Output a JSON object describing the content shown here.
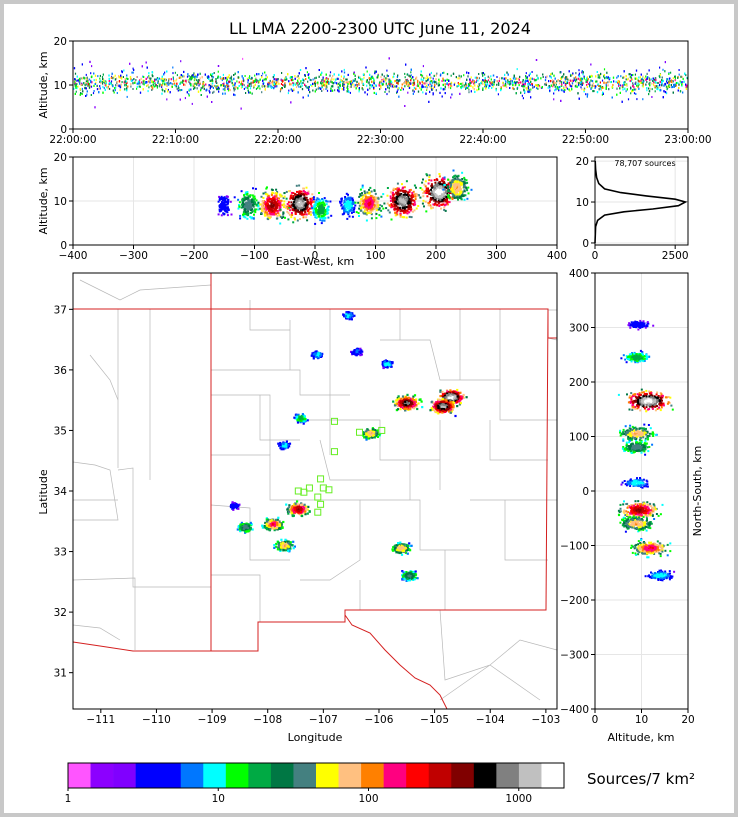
{
  "title": "LL LMA 2200-2300 UTC June 11, 2024",
  "panels": {
    "time_height": {
      "ylabel": "Altitude, km",
      "xticks": [
        "22:00:00",
        "22:10:00",
        "22:20:00",
        "22:30:00",
        "22:40:00",
        "22:50:00",
        "23:00:00"
      ],
      "yticks": [
        "0",
        "10",
        "20"
      ]
    },
    "ew_height": {
      "ylabel": "Altitude, km",
      "xlabel": "East-West, km",
      "xticks": [
        "−400",
        "−300",
        "−200",
        "−100",
        "0",
        "100",
        "200",
        "300",
        "400"
      ],
      "yticks": [
        "0",
        "10",
        "20"
      ]
    },
    "hist": {
      "annotation": "78,707 sources",
      "xticks": [
        "0",
        "2500"
      ],
      "yticks": [
        "0",
        "10",
        "20"
      ]
    },
    "plan": {
      "xlabel": "Longitude",
      "ylabel": "Latitude",
      "xticks": [
        "−111",
        "−110",
        "−109",
        "−108",
        "−107",
        "−106",
        "−105",
        "−104",
        "−103"
      ],
      "yticks": [
        "31",
        "32",
        "33",
        "34",
        "35",
        "36",
        "37"
      ]
    },
    "ns_height": {
      "xlabel": "Altitude, km",
      "ylabel": "North-South, km",
      "xticks": [
        "0",
        "10",
        "20"
      ],
      "yticks": [
        "400",
        "300",
        "200",
        "100",
        "0",
        "−100",
        "−200",
        "−300",
        "−400"
      ]
    }
  },
  "colorbar": {
    "label": "Sources/7 km²",
    "ticks": [
      "1",
      "10",
      "100",
      "1000"
    ],
    "colors": [
      "#ff55ff",
      "#8c00ff",
      "#8000ff",
      "#0000ff",
      "#0000ff",
      "#0077ff",
      "#00ffff",
      "#00ff00",
      "#00aa44",
      "#007744",
      "#448080",
      "#ffff00",
      "#ffc080",
      "#ff8000",
      "#ff0080",
      "#ff0000",
      "#c00000",
      "#800000",
      "#000000",
      "#808080",
      "#c0c0c0",
      "#ffffff"
    ]
  },
  "chart_data": [
    {
      "type": "heatmap",
      "name": "time-height",
      "ylabel": "Altitude, km",
      "x_range": [
        "22:00:00",
        "23:00:00"
      ],
      "ylim": [
        0,
        20
      ],
      "band": {
        "altitude_center_km": 10.5,
        "core_km": [
          7,
          14
        ],
        "extent_km": [
          3,
          19
        ]
      }
    },
    {
      "type": "heatmap",
      "name": "east-west-height",
      "xlabel": "East-West, km",
      "ylabel": "Altitude, km",
      "xlim": [
        -400,
        400
      ],
      "ylim": [
        0,
        20
      ],
      "cells": [
        {
          "x": -150,
          "alt": 9,
          "level": 0.2
        },
        {
          "x": -110,
          "alt": 9,
          "level": 0.5
        },
        {
          "x": -70,
          "alt": 9,
          "level": 0.8
        },
        {
          "x": -25,
          "alt": 9.5,
          "level": 0.95
        },
        {
          "x": 10,
          "alt": 8,
          "level": 0.4
        },
        {
          "x": 55,
          "alt": 9,
          "level": 0.3
        },
        {
          "x": 90,
          "alt": 9.5,
          "level": 0.7
        },
        {
          "x": 145,
          "alt": 10,
          "level": 0.95
        },
        {
          "x": 205,
          "alt": 12,
          "level": 1.0
        },
        {
          "x": 235,
          "alt": 13,
          "level": 0.6
        }
      ]
    },
    {
      "type": "line",
      "name": "altitude-histogram",
      "annotation": "78,707 sources",
      "xlim": [
        0,
        2900
      ],
      "ylim": [
        -0.5,
        21
      ],
      "points": [
        [
          0,
          0
        ],
        [
          20,
          4
        ],
        [
          80,
          5.5
        ],
        [
          300,
          6.8
        ],
        [
          900,
          7.6
        ],
        [
          1800,
          8.3
        ],
        [
          2600,
          9.1
        ],
        [
          2820,
          10
        ],
        [
          2500,
          10.7
        ],
        [
          1600,
          11.5
        ],
        [
          800,
          12.3
        ],
        [
          300,
          13.2
        ],
        [
          120,
          14.5
        ],
        [
          50,
          16
        ],
        [
          20,
          18
        ],
        [
          5,
          20
        ]
      ]
    },
    {
      "type": "heatmap",
      "name": "plan-view",
      "xlabel": "Longitude",
      "ylabel": "Latitude",
      "xlim": [
        -111.5,
        -102.8
      ],
      "ylim": [
        30.4,
        37.6
      ],
      "clusters": [
        {
          "lon": -104.7,
          "lat": 35.55,
          "level": 1.0
        },
        {
          "lon": -104.85,
          "lat": 35.4,
          "level": 0.95
        },
        {
          "lon": -105.5,
          "lat": 35.45,
          "level": 0.9
        },
        {
          "lon": -106.15,
          "lat": 34.95,
          "level": 0.6
        },
        {
          "lon": -107.4,
          "lat": 35.2,
          "level": 0.4
        },
        {
          "lon": -107.45,
          "lat": 33.7,
          "level": 0.8
        },
        {
          "lon": -107.9,
          "lat": 33.45,
          "level": 0.7
        },
        {
          "lon": -107.7,
          "lat": 33.1,
          "level": 0.6
        },
        {
          "lon": -108.4,
          "lat": 33.4,
          "level": 0.5
        },
        {
          "lon": -105.6,
          "lat": 33.05,
          "level": 0.6
        },
        {
          "lon": -105.45,
          "lat": 32.6,
          "level": 0.5
        },
        {
          "lon": -107.7,
          "lat": 34.75,
          "level": 0.3
        },
        {
          "lon": -106.55,
          "lat": 36.9,
          "level": 0.3
        },
        {
          "lon": -107.1,
          "lat": 36.25,
          "level": 0.3
        },
        {
          "lon": -106.4,
          "lat": 36.3,
          "level": 0.25
        },
        {
          "lon": -105.85,
          "lat": 36.1,
          "level": 0.3
        },
        {
          "lon": -108.6,
          "lat": 33.75,
          "level": 0.2
        }
      ],
      "stations": [
        {
          "lon": -106.8,
          "lat": 35.15
        },
        {
          "lon": -106.35,
          "lat": 34.97
        },
        {
          "lon": -105.95,
          "lat": 35.0
        },
        {
          "lon": -106.8,
          "lat": 34.65
        },
        {
          "lon": -107.05,
          "lat": 34.2
        },
        {
          "lon": -107.25,
          "lat": 34.05
        },
        {
          "lon": -107.35,
          "lat": 33.98
        },
        {
          "lon": -107.0,
          "lat": 34.05
        },
        {
          "lon": -106.9,
          "lat": 34.02
        },
        {
          "lon": -107.1,
          "lat": 33.9
        },
        {
          "lon": -107.05,
          "lat": 33.78
        },
        {
          "lon": -107.1,
          "lat": 33.65
        },
        {
          "lon": -107.45,
          "lat": 34.0
        }
      ]
    },
    {
      "type": "heatmap",
      "name": "north-south-height",
      "xlabel": "Altitude, km",
      "ylabel": "North-South, km",
      "xlim": [
        0,
        20
      ],
      "ylim": [
        -400,
        400
      ],
      "cells": [
        {
          "ns": 305,
          "alt": 9.5,
          "level": 0.2
        },
        {
          "ns": 245,
          "alt": 9,
          "level": 0.4
        },
        {
          "ns": 165,
          "alt": 11.5,
          "level": 1.0
        },
        {
          "ns": 105,
          "alt": 9,
          "level": 0.6
        },
        {
          "ns": 80,
          "alt": 9,
          "level": 0.5
        },
        {
          "ns": 15,
          "alt": 9,
          "level": 0.3
        },
        {
          "ns": -35,
          "alt": 9.5,
          "level": 0.8
        },
        {
          "ns": -60,
          "alt": 9,
          "level": 0.6
        },
        {
          "ns": -105,
          "alt": 12,
          "level": 0.7
        },
        {
          "ns": -155,
          "alt": 14,
          "level": 0.3
        }
      ]
    }
  ]
}
